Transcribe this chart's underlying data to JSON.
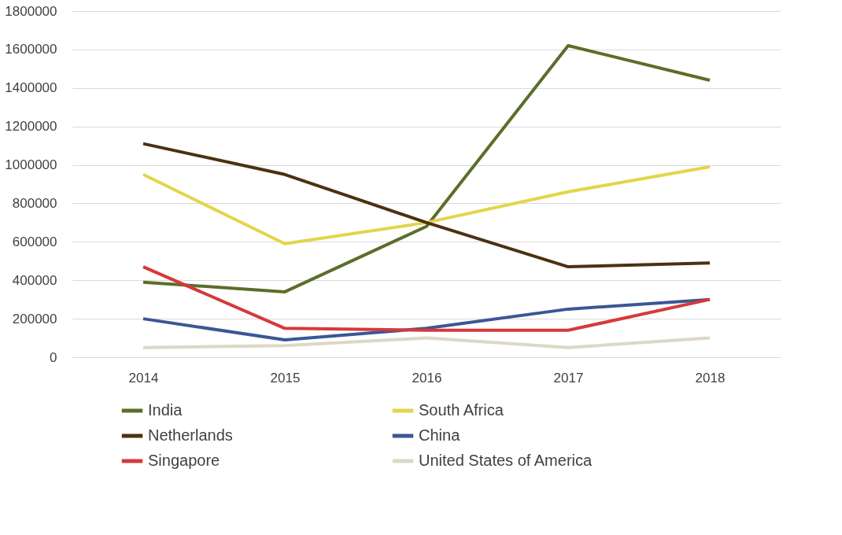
{
  "chart_data": {
    "type": "line",
    "categories": [
      "2014",
      "2015",
      "2016",
      "2017",
      "2018"
    ],
    "series": [
      {
        "name": "India",
        "color": "#5b6e2a",
        "values": [
          390000,
          340000,
          680000,
          1620000,
          1440000
        ]
      },
      {
        "name": "South Africa",
        "color": "#e3d54a",
        "values": [
          950000,
          590000,
          700000,
          860000,
          990000
        ]
      },
      {
        "name": "Netherlands",
        "color": "#4a3210",
        "values": [
          1110000,
          950000,
          700000,
          470000,
          490000
        ]
      },
      {
        "name": "China",
        "color": "#3a5795",
        "values": [
          200000,
          90000,
          150000,
          250000,
          300000
        ]
      },
      {
        "name": "Singapore",
        "color": "#d6393a",
        "values": [
          470000,
          150000,
          140000,
          140000,
          300000
        ]
      },
      {
        "name": "United States of America",
        "color": "#ddd8c4",
        "values": [
          50000,
          60000,
          100000,
          50000,
          100000
        ]
      }
    ],
    "ylim": [
      0,
      1800000
    ],
    "yticks": [
      0,
      200000,
      400000,
      600000,
      800000,
      1000000,
      1200000,
      1400000,
      1600000,
      1800000
    ],
    "grid": "y",
    "legend": "bottom",
    "marker": "none",
    "line_style": "solid"
  }
}
